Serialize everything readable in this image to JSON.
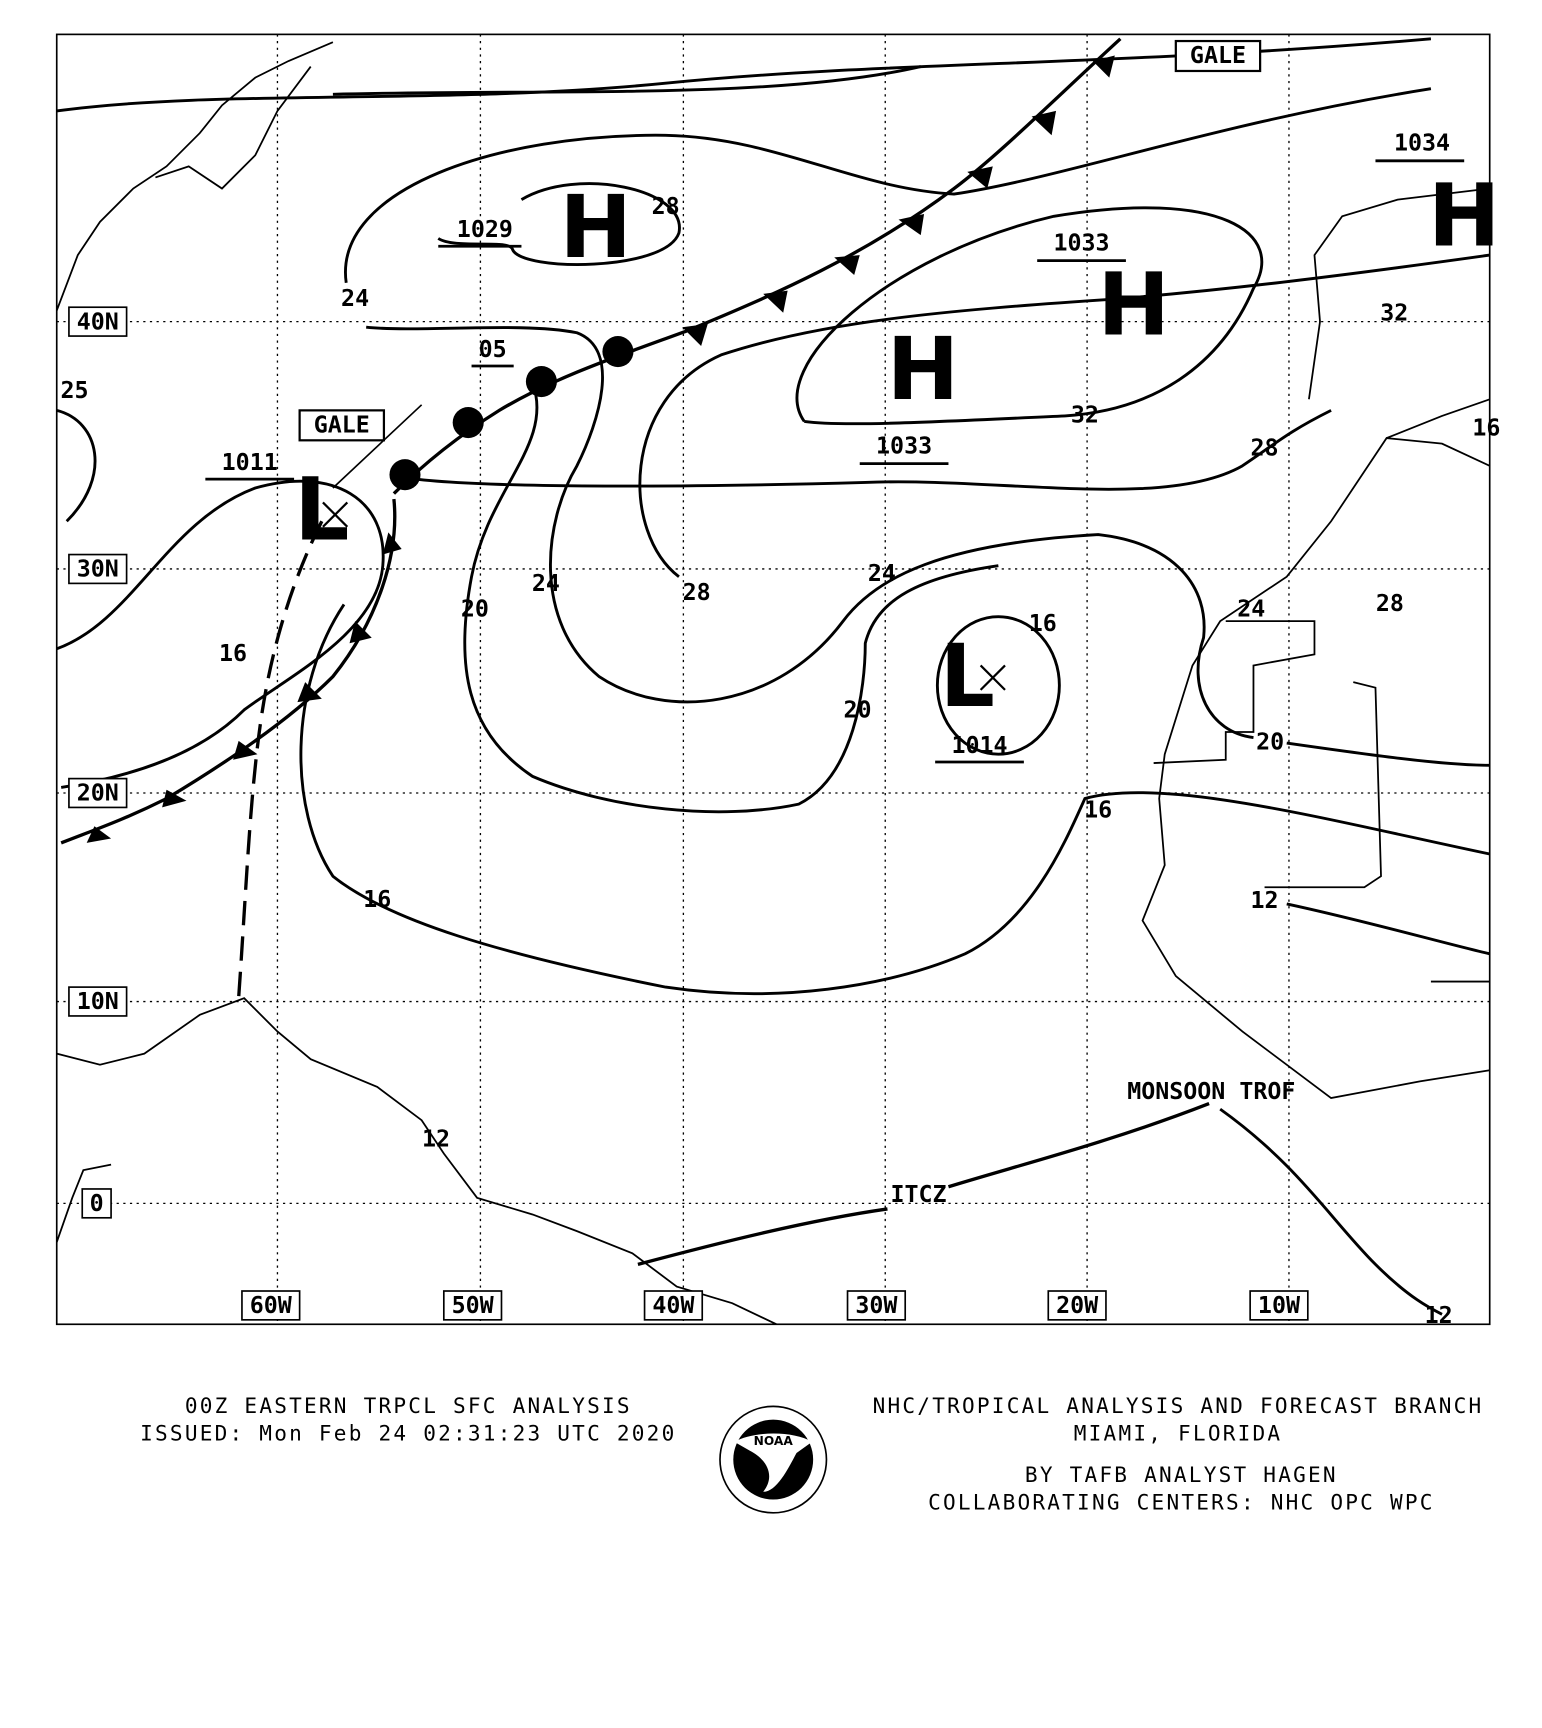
{
  "map": {
    "grid_labels": {
      "lon": [
        "60W",
        "50W",
        "40W",
        "30W",
        "20W",
        "10W"
      ],
      "lat": [
        "40N",
        "30N",
        "20N",
        "10N",
        "0"
      ]
    },
    "centers": [
      {
        "type": "H",
        "pressure": "1029"
      },
      {
        "type": "H",
        "pressure": "1033"
      },
      {
        "type": "H",
        "pressure": "1033"
      },
      {
        "type": "H",
        "pressure": "1034"
      },
      {
        "type": "L",
        "pressure": "1011"
      },
      {
        "type": "L",
        "pressure": "1014"
      }
    ],
    "front_label": "05",
    "isobar_labels": [
      "28",
      "24",
      "32",
      "32",
      "28",
      "25",
      "16",
      "24",
      "28",
      "24",
      "20",
      "16",
      "24",
      "28",
      "16",
      "20",
      "20",
      "16",
      "16",
      "12",
      "12",
      "12"
    ],
    "gale_labels": [
      "GALE",
      "GALE"
    ],
    "features": {
      "monsoon": "MONSOON TROF",
      "itcz": "ITCZ"
    }
  },
  "footer": {
    "title": "00Z EASTERN TRPCL SFC ANALYSIS",
    "issued": "ISSUED: Mon Feb 24 02:31:23 UTC 2020",
    "org": "NHC/TROPICAL ANALYSIS AND FORECAST BRANCH",
    "location": "MIAMI,  FLORIDA",
    "analyst": "BY TAFB ANALYST  HAGEN",
    "collab": "COLLABORATING CENTERS: NHC OPC WPC",
    "logo_text": "NOAA"
  }
}
